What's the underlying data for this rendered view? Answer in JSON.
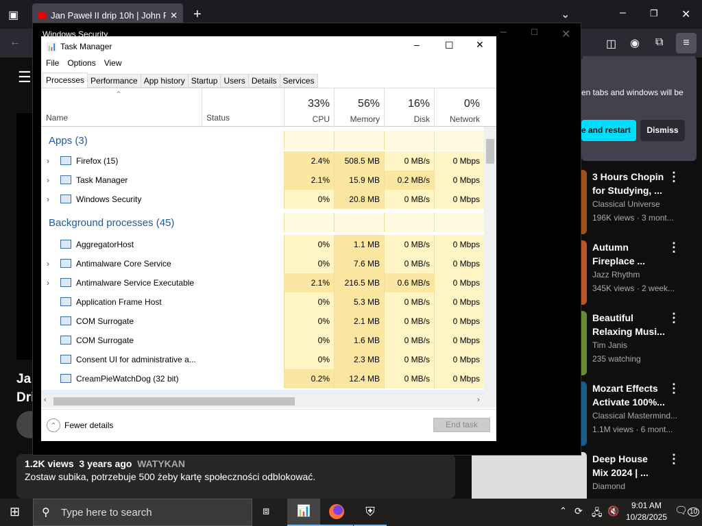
{
  "browser": {
    "tab_title": "Jan Paweł II drip 10h | John Paul",
    "popup_text": "en tabs and windows will be",
    "popup_primary": "e and restart",
    "popup_dismiss": "Dismiss"
  },
  "youtube": {
    "title_partial_1": "Ja",
    "title_partial_2": "Dri",
    "meta_views": "1.2K views",
    "meta_age": "3 years ago",
    "meta_tag": "WATYKAN",
    "description": "Zostaw subika, potrzebuje 500 żeby kartę społeczności odblokować.",
    "recommended": [
      {
        "title1": "3 Hours Chopin",
        "title2": "for Studying, ...",
        "channel": "Classical Universe",
        "stats": "196K views · 3 mont..."
      },
      {
        "title1": "Autumn",
        "title2": "Fireplace ...",
        "channel": "Jazz Rhythm",
        "stats": "345K views · 2 week..."
      },
      {
        "title1": "Beautiful",
        "title2": "Relaxing Musi...",
        "channel": "Tim Janis",
        "stats": "235 watching"
      },
      {
        "title1": "Mozart Effects",
        "title2": "Activate 100%...",
        "channel": "Classical Mastermind...",
        "stats": "1.1M views · 6 mont..."
      },
      {
        "title1": "Deep House",
        "title2": "Mix 2024 | ...",
        "channel": "Diamond",
        "stats": ""
      }
    ]
  },
  "winsec": {
    "title": "Windows Security"
  },
  "taskmanager": {
    "title": "Task Manager",
    "menu": [
      "File",
      "Options",
      "View"
    ],
    "tabs": [
      "Processes",
      "Performance",
      "App history",
      "Startup",
      "Users",
      "Details",
      "Services"
    ],
    "columns": {
      "name": "Name",
      "status": "Status",
      "cpu": "CPU",
      "memory": "Memory",
      "disk": "Disk",
      "network": "Network",
      "cpu_pct": "33%",
      "memory_pct": "56%",
      "disk_pct": "16%",
      "network_pct": "0%"
    },
    "rows": [
      {
        "group": "Apps (3)"
      },
      {
        "name": "Firefox (15)",
        "expand": true,
        "icon": "firefox-icon",
        "cpu": "2.4%",
        "mem": "508.5 MB",
        "disk": "0 MB/s",
        "net": "0 Mbps"
      },
      {
        "name": "Task Manager",
        "expand": true,
        "icon": "task-manager-icon",
        "cpu": "2.1%",
        "mem": "15.9 MB",
        "disk": "0.2 MB/s",
        "net": "0 Mbps"
      },
      {
        "name": "Windows Security",
        "expand": true,
        "icon": "shield-icon",
        "cpu": "0%",
        "mem": "20.8 MB",
        "disk": "0 MB/s",
        "net": "0 Mbps"
      },
      {
        "group": "Background processes (45)"
      },
      {
        "name": "AggregatorHost",
        "expand": false,
        "icon": "process-icon",
        "cpu": "0%",
        "mem": "1.1 MB",
        "disk": "0 MB/s",
        "net": "0 Mbps"
      },
      {
        "name": "Antimalware Core Service",
        "expand": true,
        "icon": "process-icon",
        "cpu": "0%",
        "mem": "7.6 MB",
        "disk": "0 MB/s",
        "net": "0 Mbps"
      },
      {
        "name": "Antimalware Service Executable",
        "expand": true,
        "icon": "process-icon",
        "cpu": "2.1%",
        "mem": "216.5 MB",
        "disk": "0.6 MB/s",
        "net": "0 Mbps"
      },
      {
        "name": "Application Frame Host",
        "expand": false,
        "icon": "process-icon",
        "cpu": "0%",
        "mem": "5.3 MB",
        "disk": "0 MB/s",
        "net": "0 Mbps"
      },
      {
        "name": "COM Surrogate",
        "expand": false,
        "icon": "process-icon",
        "cpu": "0%",
        "mem": "2.1 MB",
        "disk": "0 MB/s",
        "net": "0 Mbps"
      },
      {
        "name": "COM Surrogate",
        "expand": false,
        "icon": "process-icon",
        "cpu": "0%",
        "mem": "1.6 MB",
        "disk": "0 MB/s",
        "net": "0 Mbps"
      },
      {
        "name": "Consent UI for administrative a...",
        "expand": false,
        "icon": "window-icon",
        "cpu": "0%",
        "mem": "2.3 MB",
        "disk": "0 MB/s",
        "net": "0 Mbps"
      },
      {
        "name": "CreamPieWatchDog (32 bit)",
        "expand": false,
        "icon": "process-icon",
        "cpu": "0.2%",
        "mem": "12.4 MB",
        "disk": "0 MB/s",
        "net": "0 Mbps"
      }
    ],
    "fewer_details": "Fewer details",
    "end_task": "End task"
  },
  "taskbar": {
    "search_placeholder": "Type here to search",
    "time": "9:01 AM",
    "date": "10/28/2025",
    "notifications": "10"
  }
}
